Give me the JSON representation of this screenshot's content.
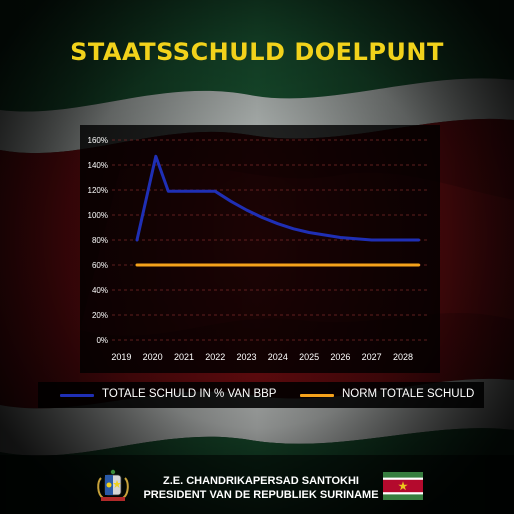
{
  "title": "STAATSSCHULD DOELPUNT",
  "chart_data": {
    "type": "line",
    "x": [
      2019.5,
      2020.1,
      2020.5,
      2021.0,
      2021.5,
      2022.0,
      2022.5,
      2023.0,
      2023.5,
      2024.0,
      2024.5,
      2025.0,
      2025.5,
      2026.0,
      2026.5,
      2027.0,
      2027.5,
      2028.0,
      2028.5
    ],
    "series": [
      {
        "name": "TOTALE SCHULD IN % VAN BBP",
        "color": "#1f2fb5",
        "values": [
          80,
          147,
          119,
          119,
          119,
          119,
          111,
          104,
          98,
          93,
          89,
          86,
          84,
          82,
          81,
          80,
          80,
          80,
          80
        ]
      },
      {
        "name": "NORM TOTALE SCHULD",
        "color": "#f5a21b",
        "values": [
          60,
          60,
          60,
          60,
          60,
          60,
          60,
          60,
          60,
          60,
          60,
          60,
          60,
          60,
          60,
          60,
          60,
          60,
          60
        ]
      }
    ],
    "xticks": [
      "2019",
      "2020",
      "2021",
      "2022",
      "2023",
      "2024",
      "2025",
      "2026",
      "2027",
      "2028"
    ],
    "yticks": [
      "0%",
      "20%",
      "40%",
      "60%",
      "80%",
      "100%",
      "120%",
      "140%",
      "160%"
    ],
    "xlim": [
      2018.7,
      2028.8
    ],
    "ylim": [
      0,
      160
    ],
    "grid": true,
    "legend_position": "bottom"
  },
  "legend": [
    {
      "label": "TOTALE SCHULD IN % VAN BBP",
      "color": "#1f2fb5"
    },
    {
      "label": "NORM TOTALE SCHULD",
      "color": "#f5a21b"
    }
  ],
  "footer": {
    "line1": "Z.E. CHANDRIKAPERSAD SANTOKHI",
    "line2": "PRESIDENT VAN DE REPUBLIEK SURINAME"
  },
  "icons": {
    "coat_of_arms": "coat-of-arms-icon",
    "flag": "suriname-flag-icon"
  }
}
